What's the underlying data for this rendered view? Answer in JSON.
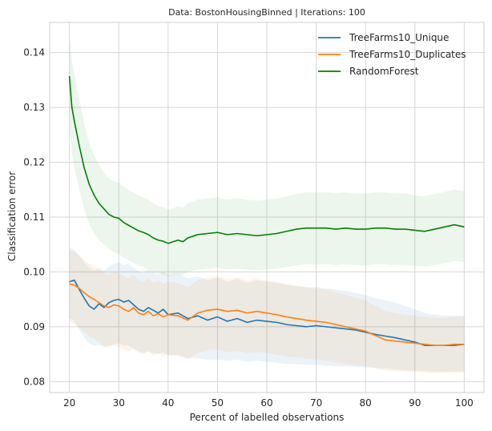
{
  "chart_data": {
    "type": "line",
    "title": "Data: BostonHousingBinned | Iterations: 100",
    "xlabel": "Percent of labelled observations",
    "ylabel": "Classification error",
    "xlim": [
      16.0,
      104.0
    ],
    "ylim": [
      0.078,
      0.1455
    ],
    "xticks": [
      20,
      30,
      40,
      50,
      60,
      70,
      80,
      90,
      100
    ],
    "yticks": [
      0.08,
      0.09,
      0.1,
      0.11,
      0.12,
      0.13,
      0.14
    ],
    "ytick_labels": [
      "0.08",
      "0.09",
      "0.10",
      "0.11",
      "0.12",
      "0.13",
      "0.14"
    ],
    "grid": true,
    "legend_position": "top-right",
    "series": [
      {
        "name": "TreeFarms10_Unique",
        "color": "#1f77b4",
        "band_color": "#1f77b4",
        "x": [
          20,
          21,
          22,
          23,
          24,
          25,
          26,
          27,
          28,
          29,
          30,
          31,
          32,
          33,
          34,
          35,
          36,
          37,
          38,
          39,
          40,
          42,
          44,
          46,
          48,
          50,
          52,
          54,
          56,
          58,
          60,
          62,
          64,
          66,
          68,
          70,
          72,
          74,
          76,
          78,
          80,
          82,
          84,
          86,
          88,
          90,
          92,
          94,
          96,
          98,
          100
        ],
        "y": [
          0.0982,
          0.0985,
          0.0968,
          0.0952,
          0.0938,
          0.0932,
          0.0942,
          0.0935,
          0.0944,
          0.0948,
          0.095,
          0.0945,
          0.0948,
          0.094,
          0.0932,
          0.0928,
          0.0935,
          0.093,
          0.0925,
          0.0932,
          0.0922,
          0.0925,
          0.0915,
          0.092,
          0.0912,
          0.0918,
          0.091,
          0.0915,
          0.0908,
          0.0912,
          0.091,
          0.0908,
          0.0904,
          0.0902,
          0.09,
          0.0902,
          0.09,
          0.0898,
          0.0896,
          0.0894,
          0.089,
          0.0886,
          0.0883,
          0.088,
          0.0876,
          0.0872,
          0.0866,
          0.0866,
          0.0866,
          0.0866,
          0.0868
        ],
        "lower": [
          0.0916,
          0.091,
          0.0895,
          0.088,
          0.087,
          0.0865,
          0.0868,
          0.0862,
          0.0866,
          0.0868,
          0.087,
          0.0866,
          0.0866,
          0.086,
          0.0855,
          0.0853,
          0.0855,
          0.0852,
          0.085,
          0.0853,
          0.0848,
          0.0848,
          0.0842,
          0.0843,
          0.084,
          0.084,
          0.0838,
          0.084,
          0.0836,
          0.0838,
          0.0836,
          0.0834,
          0.0832,
          0.0832,
          0.0831,
          0.083,
          0.0829,
          0.0828,
          0.0828,
          0.0827,
          0.0826,
          0.0825,
          0.0824,
          0.0822,
          0.0821,
          0.082,
          0.0819,
          0.0818,
          0.0818,
          0.0818,
          0.0819
        ],
        "upper": [
          0.1045,
          0.104,
          0.103,
          0.1018,
          0.1008,
          0.1002,
          0.1008,
          0.1002,
          0.101,
          0.1015,
          0.1018,
          0.1012,
          0.1015,
          0.1008,
          0.1002,
          0.0998,
          0.1005,
          0.1,
          0.0995,
          0.1,
          0.0993,
          0.0998,
          0.0988,
          0.0992,
          0.0985,
          0.099,
          0.0982,
          0.0988,
          0.098,
          0.0985,
          0.0982,
          0.098,
          0.0976,
          0.0974,
          0.0972,
          0.0972,
          0.097,
          0.0968,
          0.0965,
          0.0962,
          0.0958,
          0.0952,
          0.0948,
          0.0944,
          0.0938,
          0.0932,
          0.0925,
          0.0922,
          0.092,
          0.092,
          0.092
        ]
      },
      {
        "name": "TreeFarms10_Duplicates",
        "color": "#ff7f0e",
        "band_color": "#ff7f0e",
        "x": [
          20,
          21,
          22,
          23,
          24,
          25,
          26,
          27,
          28,
          29,
          30,
          31,
          32,
          33,
          34,
          35,
          36,
          37,
          38,
          39,
          40,
          42,
          44,
          46,
          48,
          50,
          52,
          54,
          56,
          58,
          60,
          62,
          64,
          66,
          68,
          70,
          72,
          74,
          76,
          78,
          80,
          82,
          84,
          86,
          88,
          90,
          92,
          94,
          96,
          98,
          100
        ],
        "y": [
          0.0978,
          0.0976,
          0.097,
          0.0962,
          0.0955,
          0.095,
          0.0944,
          0.0938,
          0.0935,
          0.094,
          0.0938,
          0.0932,
          0.0928,
          0.0935,
          0.0925,
          0.0922,
          0.0928,
          0.092,
          0.0924,
          0.0918,
          0.0922,
          0.092,
          0.0912,
          0.0925,
          0.093,
          0.0932,
          0.0928,
          0.093,
          0.0925,
          0.0928,
          0.0925,
          0.0922,
          0.0918,
          0.0915,
          0.0912,
          0.091,
          0.0908,
          0.0904,
          0.09,
          0.0896,
          0.0892,
          0.0884,
          0.0876,
          0.0874,
          0.0872,
          0.087,
          0.0868,
          0.0866,
          0.0866,
          0.0868,
          0.0868
        ],
        "lower": [
          0.091,
          0.0905,
          0.0898,
          0.089,
          0.0883,
          0.0878,
          0.0872,
          0.0866,
          0.0862,
          0.0866,
          0.0864,
          0.0858,
          0.0855,
          0.086,
          0.0852,
          0.085,
          0.0855,
          0.0848,
          0.0852,
          0.0846,
          0.085,
          0.0848,
          0.0842,
          0.0852,
          0.0856,
          0.0858,
          0.0854,
          0.0856,
          0.0852,
          0.0854,
          0.0852,
          0.0849,
          0.0846,
          0.0844,
          0.0842,
          0.084,
          0.0838,
          0.0835,
          0.0832,
          0.083,
          0.0828,
          0.0824,
          0.082,
          0.0819,
          0.0818,
          0.0817,
          0.0816,
          0.0815,
          0.0815,
          0.0816,
          0.0816
        ],
        "upper": [
          0.104,
          0.1036,
          0.103,
          0.1022,
          0.1015,
          0.101,
          0.1004,
          0.0998,
          0.0995,
          0.1,
          0.0998,
          0.0992,
          0.0988,
          0.0995,
          0.0985,
          0.0982,
          0.0988,
          0.098,
          0.0984,
          0.0978,
          0.0982,
          0.098,
          0.0972,
          0.0985,
          0.099,
          0.0992,
          0.0988,
          0.099,
          0.0985,
          0.0988,
          0.0985,
          0.0982,
          0.0978,
          0.0975,
          0.0972,
          0.097,
          0.0968,
          0.0963,
          0.0958,
          0.0953,
          0.0948,
          0.0938,
          0.0928,
          0.0925,
          0.0922,
          0.092,
          0.0918,
          0.0916,
          0.0916,
          0.0918,
          0.0918
        ]
      },
      {
        "name": "RandomForest",
        "color": "#008000",
        "band_color": "#2ca02c",
        "x": [
          20,
          20.5,
          21,
          22,
          23,
          24,
          25,
          26,
          27,
          28,
          29,
          30,
          31,
          32,
          33,
          34,
          35,
          36,
          37,
          38,
          39,
          40,
          41,
          42,
          43,
          44,
          45,
          46,
          48,
          50,
          52,
          54,
          56,
          58,
          60,
          62,
          64,
          66,
          68,
          70,
          72,
          74,
          76,
          78,
          80,
          82,
          84,
          86,
          88,
          90,
          92,
          94,
          96,
          98,
          100
        ],
        "y": [
          0.1357,
          0.13,
          0.1275,
          0.123,
          0.119,
          0.116,
          0.114,
          0.1125,
          0.1115,
          0.1105,
          0.11,
          0.1098,
          0.109,
          0.1085,
          0.108,
          0.1075,
          0.1072,
          0.1068,
          0.1062,
          0.1058,
          0.1056,
          0.1052,
          0.1055,
          0.1058,
          0.1055,
          0.1062,
          0.1065,
          0.1068,
          0.107,
          0.1072,
          0.1068,
          0.107,
          0.1068,
          0.1066,
          0.1068,
          0.107,
          0.1074,
          0.1078,
          0.108,
          0.108,
          0.108,
          0.1078,
          0.108,
          0.1078,
          0.1078,
          0.108,
          0.108,
          0.1078,
          0.1078,
          0.1076,
          0.1074,
          0.1078,
          0.1082,
          0.1086,
          0.1082
        ],
        "lower": [
          0.127,
          0.1215,
          0.119,
          0.115,
          0.1115,
          0.1088,
          0.107,
          0.1058,
          0.105,
          0.1042,
          0.1036,
          0.1033,
          0.1026,
          0.1021,
          0.1016,
          0.1012,
          0.1009,
          0.1005,
          0.1,
          0.0997,
          0.0995,
          0.0992,
          0.0994,
          0.0996,
          0.0994,
          0.0999,
          0.1002,
          0.1004,
          0.1006,
          0.1008,
          0.1004,
          0.1006,
          0.1004,
          0.1003,
          0.1004,
          0.1006,
          0.1009,
          0.1012,
          0.1014,
          0.1014,
          0.1014,
          0.1012,
          0.1014,
          0.1012,
          0.1012,
          0.1014,
          0.1014,
          0.1012,
          0.1012,
          0.1011,
          0.101,
          0.1012,
          0.1016,
          0.102,
          0.1018
        ],
        "upper": [
          0.143,
          0.1385,
          0.136,
          0.1315,
          0.127,
          0.1235,
          0.1212,
          0.1195,
          0.1182,
          0.117,
          0.1165,
          0.1163,
          0.1155,
          0.115,
          0.1145,
          0.114,
          0.1136,
          0.1132,
          0.1125,
          0.112,
          0.1118,
          0.1113,
          0.1116,
          0.112,
          0.1117,
          0.1125,
          0.1128,
          0.1132,
          0.1134,
          0.1136,
          0.1132,
          0.1134,
          0.1132,
          0.113,
          0.1132,
          0.1134,
          0.1138,
          0.1142,
          0.1145,
          0.1145,
          0.1145,
          0.1143,
          0.1145,
          0.1143,
          0.1143,
          0.1145,
          0.1145,
          0.1143,
          0.1143,
          0.114,
          0.1138,
          0.1142,
          0.1146,
          0.115,
          0.1147
        ]
      }
    ]
  }
}
